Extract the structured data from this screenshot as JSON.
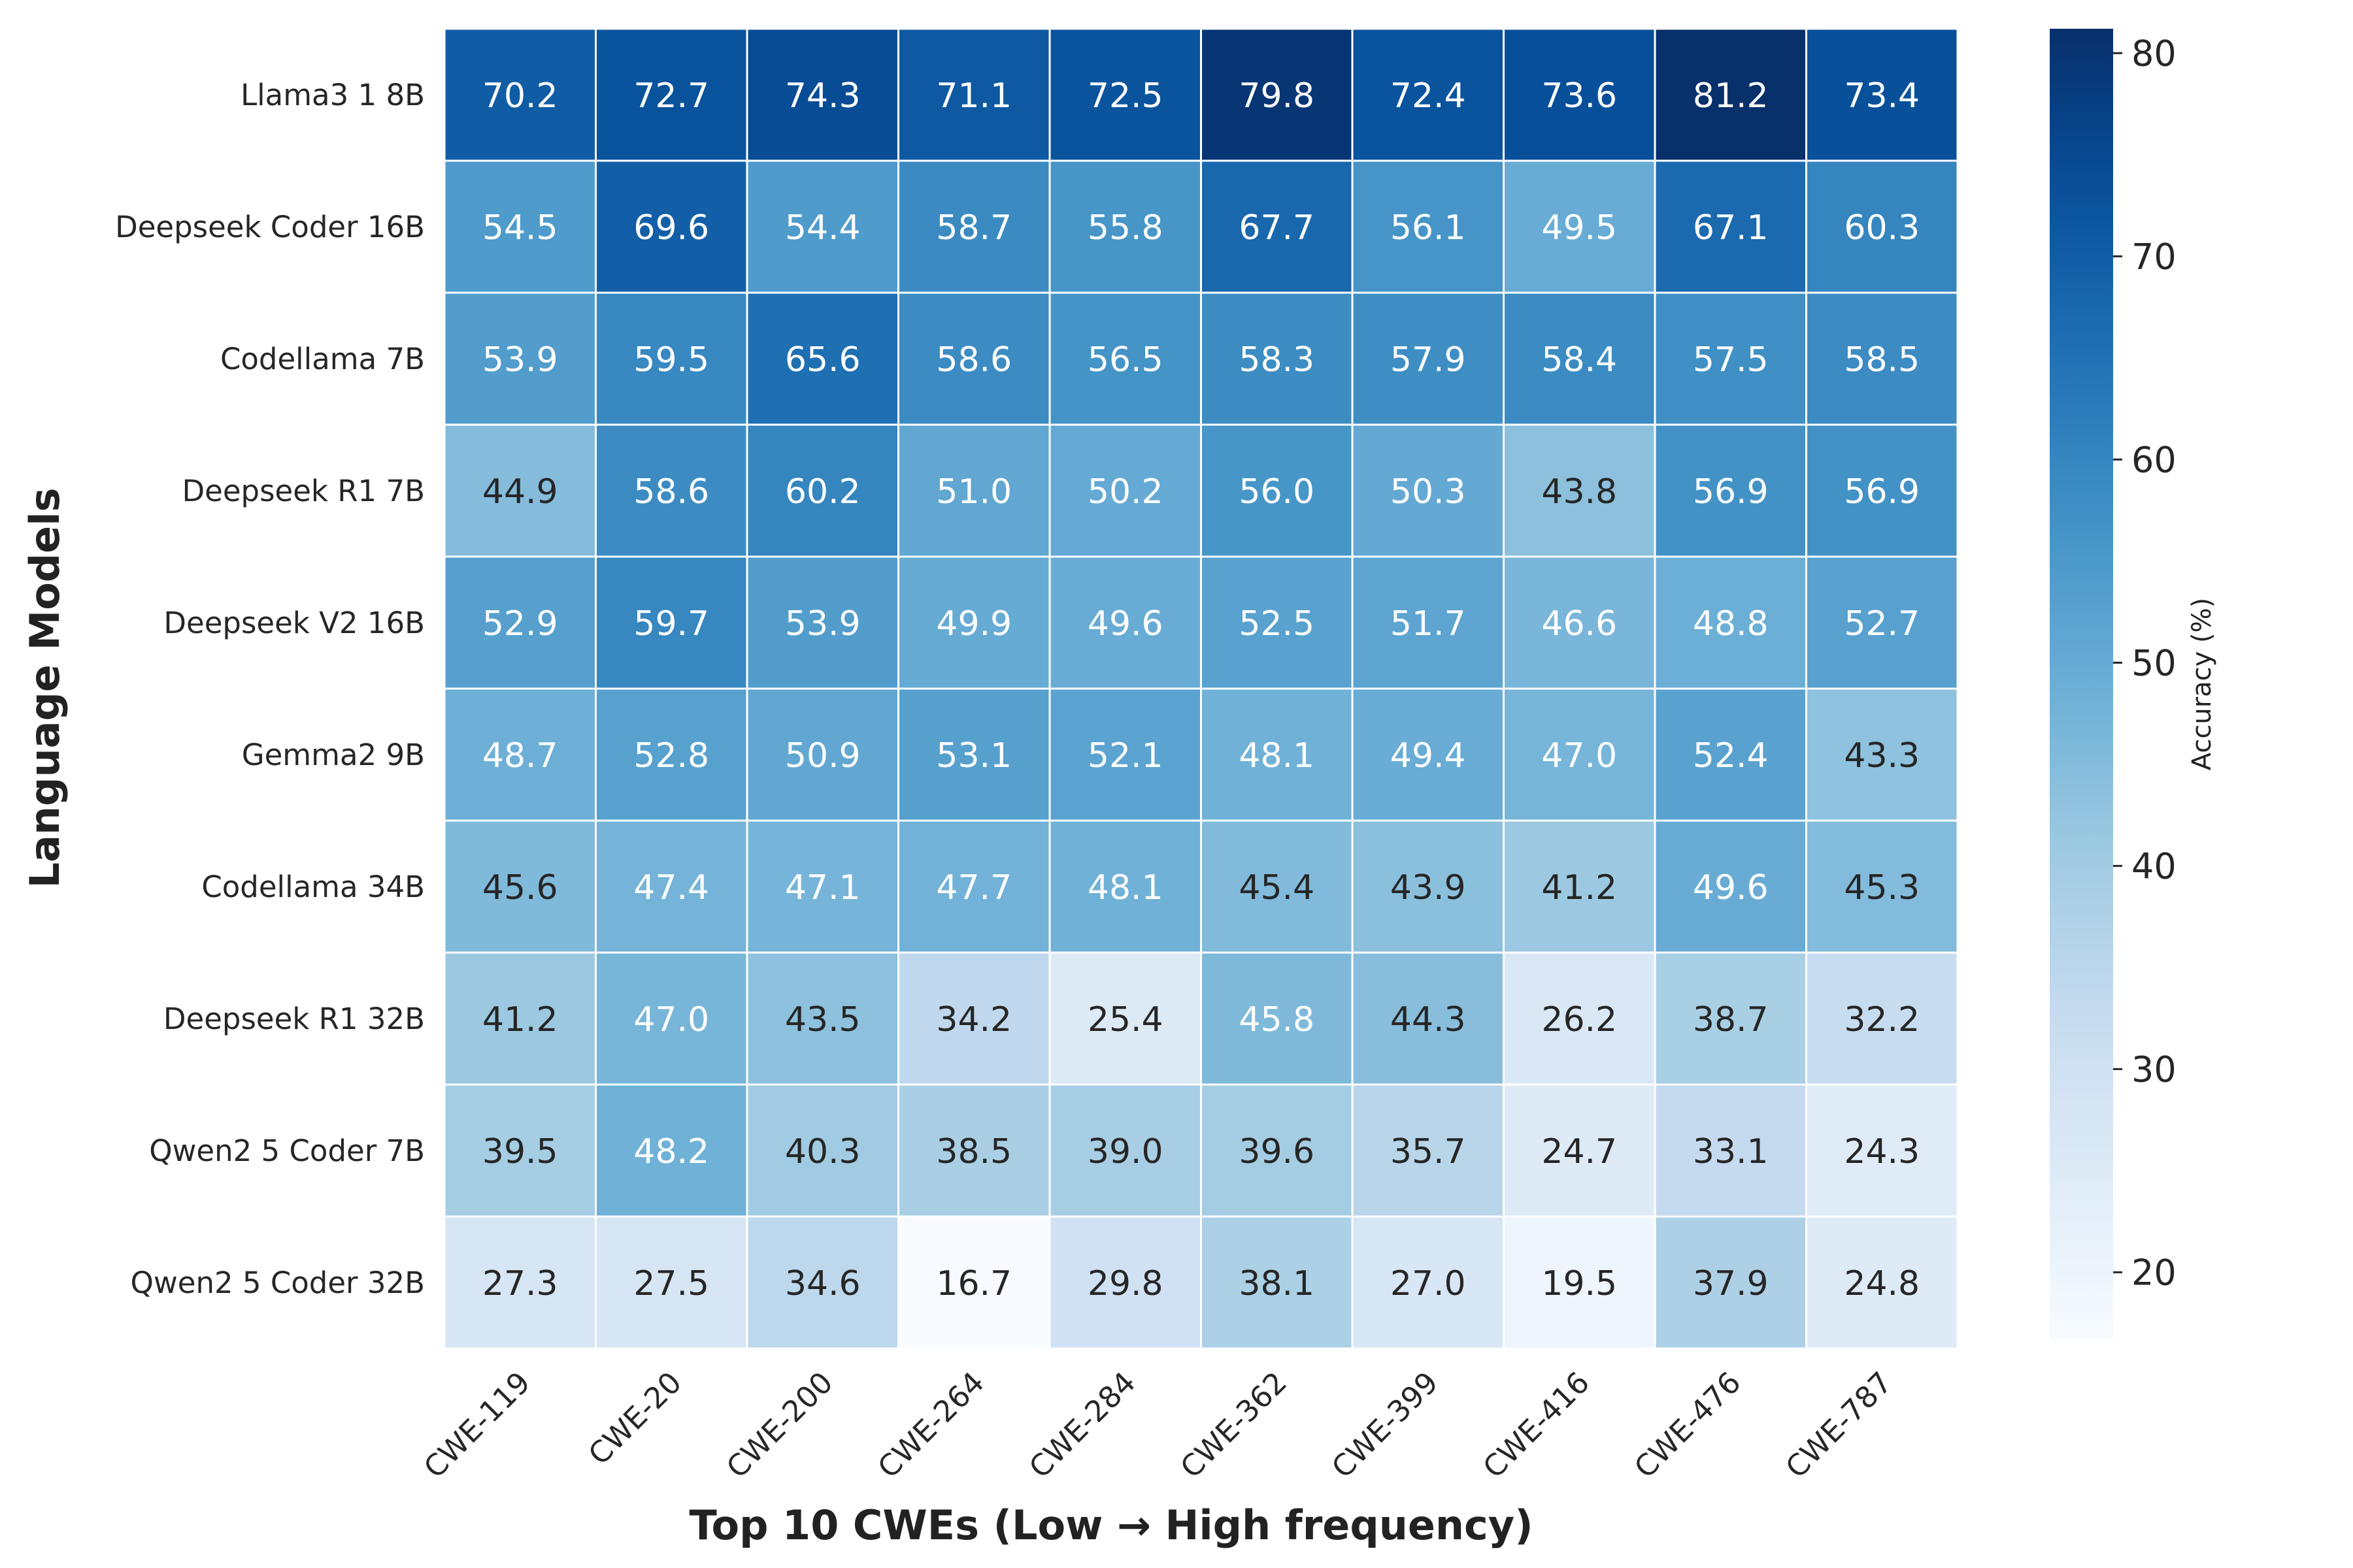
{
  "chart_data": {
    "type": "heatmap",
    "title": "",
    "xlabel": "Top 10 CWEs (Low → High frequency)",
    "ylabel": "Language Models",
    "colorbar_label": "Accuracy (%)",
    "colormap": "Blues",
    "vmin": 16.7,
    "vmax": 81.2,
    "colorbar_ticks": [
      20,
      30,
      40,
      50,
      60,
      70,
      80
    ],
    "columns": [
      "CWE-119",
      "CWE-20",
      "CWE-200",
      "CWE-264",
      "CWE-284",
      "CWE-362",
      "CWE-399",
      "CWE-416",
      "CWE-476",
      "CWE-787"
    ],
    "rows": [
      "Llama3 1 8B",
      "Deepseek Coder 16B",
      "Codellama 7B",
      "Deepseek R1 7B",
      "Deepseek V2 16B",
      "Gemma2 9B",
      "Codellama 34B",
      "Deepseek R1 32B",
      "Qwen2 5 Coder 7B",
      "Qwen2 5 Coder 32B"
    ],
    "values": [
      [
        70.2,
        72.7,
        74.3,
        71.1,
        72.5,
        79.8,
        72.4,
        73.6,
        81.2,
        73.4
      ],
      [
        54.5,
        69.6,
        54.4,
        58.7,
        55.8,
        67.7,
        56.1,
        49.5,
        67.1,
        60.3
      ],
      [
        53.9,
        59.5,
        65.6,
        58.6,
        56.5,
        58.3,
        57.9,
        58.4,
        57.5,
        58.5
      ],
      [
        44.9,
        58.6,
        60.2,
        51.0,
        50.2,
        56.0,
        50.3,
        43.8,
        56.9,
        56.9
      ],
      [
        52.9,
        59.7,
        53.9,
        49.9,
        49.6,
        52.5,
        51.7,
        46.6,
        48.8,
        52.7
      ],
      [
        48.7,
        52.8,
        50.9,
        53.1,
        52.1,
        48.1,
        49.4,
        47.0,
        52.4,
        43.3
      ],
      [
        45.6,
        47.4,
        47.1,
        47.7,
        48.1,
        45.4,
        43.9,
        41.2,
        49.6,
        45.3
      ],
      [
        41.2,
        47.0,
        43.5,
        34.2,
        25.4,
        45.8,
        44.3,
        26.2,
        38.7,
        32.2
      ],
      [
        39.5,
        48.2,
        40.3,
        38.5,
        39.0,
        39.6,
        35.7,
        24.7,
        33.1,
        24.3
      ],
      [
        27.3,
        27.5,
        34.6,
        16.7,
        29.8,
        38.1,
        27.0,
        19.5,
        37.9,
        24.8
      ]
    ],
    "legend": "colorbar-right",
    "grid": false
  }
}
